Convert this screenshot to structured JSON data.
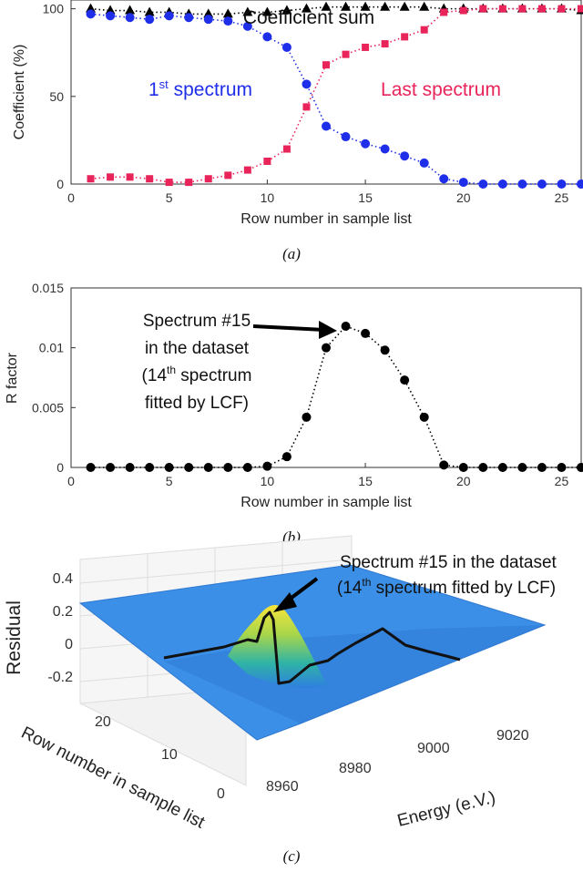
{
  "chart_data": [
    {
      "type": "scatter",
      "panel": "a",
      "caption": "(a)",
      "xlabel": "Row number in sample list",
      "ylabel": "Coefficient (%)",
      "xlim": [
        0,
        26
      ],
      "ylim": [
        0,
        105
      ],
      "xticks": [
        "0",
        "5",
        "10",
        "15",
        "20",
        "25"
      ],
      "yticks": [
        "0",
        "50",
        "100"
      ],
      "series": [
        {
          "name": "Coefficient sum",
          "marker": "triangle",
          "color": "#000000",
          "x": [
            1,
            2,
            3,
            4,
            5,
            6,
            7,
            8,
            9,
            10,
            11,
            12,
            13,
            14,
            15,
            16,
            17,
            18,
            19,
            20,
            21,
            22,
            23,
            24,
            25,
            26
          ],
          "values": [
            100,
            99,
            99,
            98,
            98,
            97,
            97,
            97,
            98,
            98,
            99,
            100,
            101,
            101,
            101,
            101,
            101,
            101,
            100,
            100,
            100,
            100,
            100,
            100,
            100,
            99
          ]
        },
        {
          "name": "1st spectrum",
          "marker": "circle",
          "color": "#1f2ee8",
          "x": [
            1,
            2,
            3,
            4,
            5,
            6,
            7,
            8,
            9,
            10,
            11,
            12,
            13,
            14,
            15,
            16,
            17,
            18,
            19,
            20,
            21,
            22,
            23,
            24,
            25,
            26
          ],
          "values": [
            97,
            96,
            95,
            94,
            96,
            95,
            94,
            93,
            90,
            84,
            78,
            57,
            33,
            27,
            23,
            20,
            16,
            12,
            3,
            1,
            0,
            0,
            0,
            0,
            0,
            0
          ]
        },
        {
          "name": "Last spectrum",
          "marker": "square",
          "color": "#e8245a",
          "x": [
            1,
            2,
            3,
            4,
            5,
            6,
            7,
            8,
            9,
            10,
            11,
            12,
            13,
            14,
            15,
            16,
            17,
            18,
            19,
            20,
            21,
            22,
            23,
            24,
            25,
            26
          ],
          "values": [
            3,
            4,
            4,
            3,
            1,
            1,
            3,
            5,
            8,
            13,
            20,
            44,
            68,
            74,
            78,
            80,
            84,
            88,
            98,
            99,
            100,
            100,
            100,
            100,
            100,
            100
          ]
        }
      ],
      "annotations": {
        "sum": "Coefficient sum",
        "first_main": "1",
        "first_sup": "st",
        "first_rest": " spectrum",
        "last": "Last spectrum"
      }
    },
    {
      "type": "scatter",
      "panel": "b",
      "caption": "(b)",
      "xlabel": "Row number in sample list",
      "ylabel": "R factor",
      "xlim": [
        0,
        26
      ],
      "ylim": [
        0,
        0.015
      ],
      "xticks": [
        "0",
        "5",
        "10",
        "15",
        "20",
        "25"
      ],
      "yticks": [
        "0",
        "0.005",
        "0.01",
        "0.015"
      ],
      "series": [
        {
          "name": "R factor",
          "marker": "circle",
          "color": "#000000",
          "x": [
            1,
            2,
            3,
            4,
            5,
            6,
            7,
            8,
            9,
            10,
            11,
            12,
            13,
            14,
            15,
            16,
            17,
            18,
            19,
            20,
            21,
            22,
            23,
            24,
            25,
            26
          ],
          "values": [
            0,
            0,
            0,
            0,
            0,
            0,
            0,
            0,
            0,
            0.0001,
            0.0009,
            0.0042,
            0.01,
            0.0118,
            0.0112,
            0.0098,
            0.0073,
            0.0042,
            0.0002,
            0,
            0,
            0,
            0,
            0,
            0,
            0
          ]
        }
      ],
      "annotation_lines": [
        "Spectrum #15",
        "in the dataset",
        "(14",
        "th",
        " spectrum",
        "fitted by LCF)"
      ]
    },
    {
      "type": "surface",
      "panel": "c",
      "caption": "(c)",
      "zlabel": "Residual",
      "ylabel": "Row number in sample list",
      "xlabel": "Energy (e.V.)",
      "zticks": [
        "0.4",
        "0.2",
        "0",
        "-0.2"
      ],
      "row_ticks": [
        "20",
        "10",
        "0"
      ],
      "energy_ticks": [
        "8960",
        "8980",
        "9000",
        "9020"
      ],
      "annotation_line1": "Spectrum #15 in the dataset",
      "annotation_line2_a": "(14",
      "annotation_line2_sup": "th",
      "annotation_line2_b": " spectrum fitted by LCF)"
    }
  ]
}
